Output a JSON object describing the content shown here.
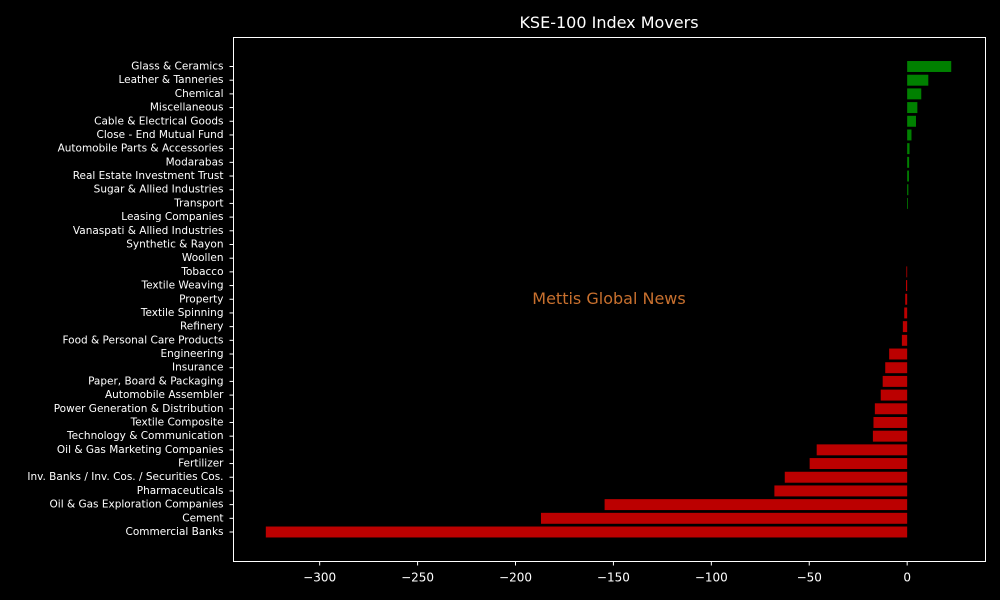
{
  "chart_data": {
    "type": "bar",
    "orientation": "horizontal",
    "title": "KSE-100 Index Movers",
    "xlabel": "",
    "ylabel": "",
    "xlim": [
      -344,
      40
    ],
    "xticks": [
      -300,
      -250,
      -200,
      -150,
      -100,
      -50,
      0
    ],
    "xtick_labels": [
      "−300",
      "−250",
      "−200",
      "−150",
      "−100",
      "−50",
      "0"
    ],
    "grid": false,
    "annotation": "Mettis Global News",
    "colors": {
      "background": "#000000",
      "positive": "#008000",
      "negative": "#bb0000",
      "axes": "#ffffff",
      "text": "#ffffff",
      "watermark": "#c8702e"
    },
    "categories": [
      "Glass & Ceramics",
      "Leather & Tanneries",
      "Chemical",
      "Miscellaneous",
      "Cable & Electrical Goods",
      "Close - End Mutual Fund",
      "Automobile Parts & Accessories",
      "Modarabas",
      "Real Estate Investment Trust",
      "Sugar & Allied Industries",
      "Transport",
      "Leasing Companies",
      "Vanaspati & Allied Industries",
      "Synthetic & Rayon",
      "Woollen",
      "Tobacco",
      "Textile Weaving",
      "Property",
      "Textile Spinning",
      "Refinery",
      "Food & Personal Care Products",
      "Engineering",
      "Insurance",
      "Paper, Board & Packaging",
      "Automobile Assembler",
      "Power Generation & Distribution",
      "Textile Composite",
      "Technology & Communication",
      "Oil & Gas Marketing Companies",
      "Fertilizer",
      "Inv. Banks / Inv. Cos. / Securities Cos.",
      "Pharmaceuticals",
      "Oil & Gas Exploration Companies",
      "Cement",
      "Commercial Banks"
    ],
    "values": [
      22.5,
      10.8,
      7.2,
      5.2,
      4.5,
      2.2,
      1.2,
      1.0,
      0.9,
      0.6,
      0.4,
      0,
      0,
      0,
      0,
      -0.4,
      -0.6,
      -1.0,
      -1.5,
      -2.2,
      -2.7,
      -9.2,
      -11.2,
      -12.5,
      -13.5,
      -16.5,
      -17.2,
      -17.5,
      -46.2,
      -49.8,
      -62.5,
      -67.8,
      -154.5,
      -187.0,
      -327.5
    ]
  }
}
